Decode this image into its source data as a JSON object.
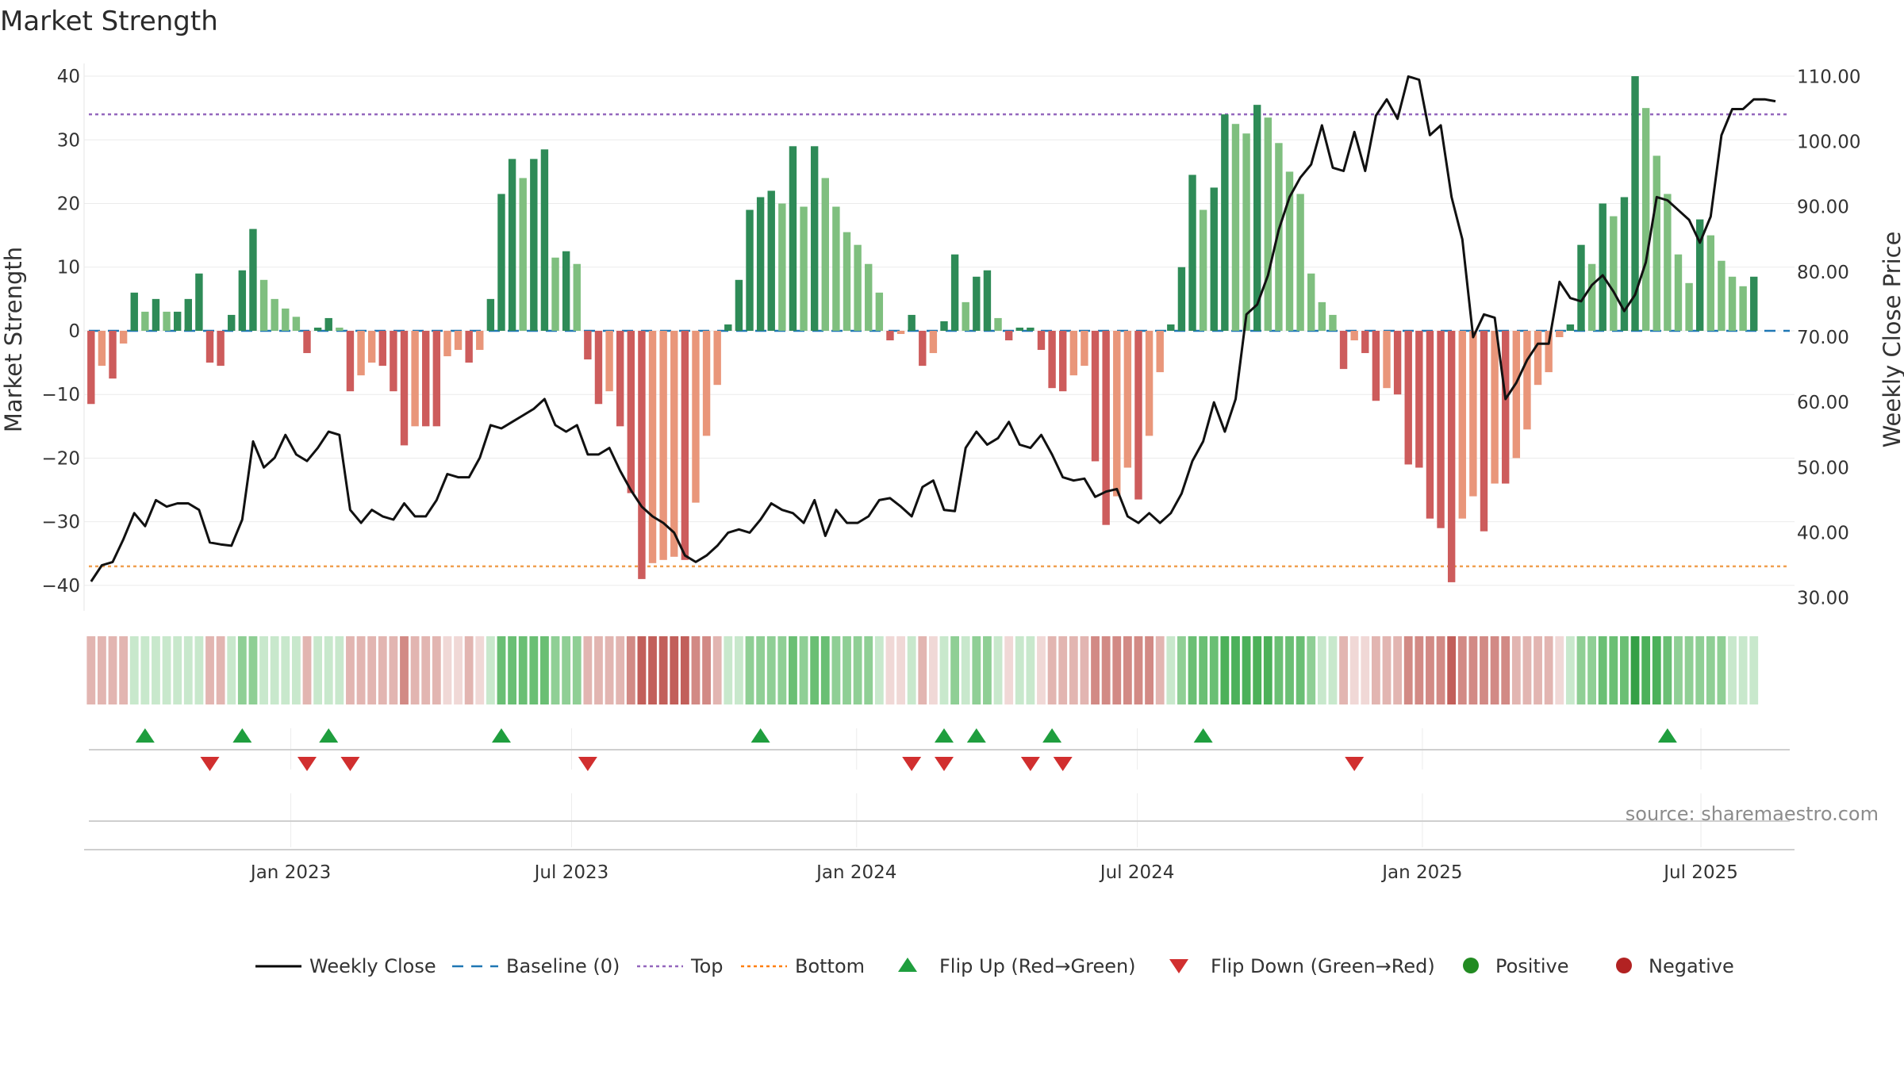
{
  "chart_data": {
    "type": "bar",
    "title": "Market Strength",
    "ylabel": "Market Strength",
    "y2label": "Weekly Close Price",
    "ylim": [
      -44,
      42
    ],
    "y2lim": [
      28,
      112
    ],
    "yticks": [
      "40",
      "30",
      "20",
      "10",
      "0",
      "−10",
      "−20",
      "−30",
      "−40"
    ],
    "y2ticks": [
      "110.00",
      "100.00",
      "90.00",
      "80.00",
      "70.00",
      "60.00",
      "50.00",
      "40.00",
      "30.00"
    ],
    "xticks": [
      {
        "label": "Jan 2023",
        "week": 19
      },
      {
        "label": "Jul 2023",
        "week": 45
      },
      {
        "label": "Jan 2024",
        "week": 71.4
      },
      {
        "label": "Jul 2024",
        "week": 97.4
      },
      {
        "label": "Jan 2025",
        "week": 123.8
      },
      {
        "label": "Jul 2025",
        "week": 149.6
      }
    ],
    "top_line": 34,
    "bottom_line": -37,
    "strength": [
      -11.5,
      -5.5,
      -7.5,
      -2,
      6,
      3,
      5,
      3,
      3,
      5,
      9,
      -5,
      -5.5,
      2.5,
      9.5,
      16,
      8,
      5,
      3.5,
      2.2,
      -3.5,
      0.5,
      2,
      0.5,
      -9.5,
      -7,
      -5,
      -5.5,
      -9.5,
      -18,
      -15,
      -15,
      -15,
      -4,
      -3,
      -5,
      -3,
      5,
      21.5,
      27,
      24,
      27,
      28.5,
      11.5,
      12.5,
      10.5,
      -4.5,
      -11.5,
      -9.5,
      -15,
      -25.5,
      -39,
      -36.5,
      -36,
      -35.5,
      -36,
      -27,
      -16.5,
      -8.5,
      1,
      8,
      19,
      21,
      22,
      20,
      29,
      19.5,
      29,
      24,
      19.5,
      15.5,
      13.5,
      10.5,
      6,
      -1.5,
      -0.5,
      2.5,
      -5.5,
      -3.5,
      1.5,
      12,
      4.5,
      8.5,
      9.5,
      2,
      -1.5,
      0.5,
      0.5,
      -3,
      -9,
      -9.5,
      -7,
      -5.5,
      -20.5,
      -30.5,
      -26,
      -21.5,
      -26.5,
      -16.5,
      -6.5,
      1,
      10,
      24.5,
      19,
      22.5,
      34,
      32.5,
      31,
      35.5,
      33.5,
      29.5,
      25,
      21.5,
      9,
      4.5,
      2.5,
      -6,
      -1.5,
      -3.5,
      -11,
      -9,
      -10,
      -21,
      -21.5,
      -29.5,
      -31,
      -39.5,
      -29.5,
      -26,
      -31.5,
      -24,
      -24,
      -20,
      -15.5,
      -8.5,
      -6.5,
      -1,
      1,
      13.5,
      10.5,
      20,
      18,
      21,
      40,
      35,
      27.5,
      21.5,
      12,
      7.5,
      17.5,
      15,
      11,
      8.5,
      7,
      8.5
    ],
    "price": [
      32.5,
      35,
      35.5,
      39,
      43,
      41,
      45,
      44,
      44.5,
      44.5,
      43.5,
      38.5,
      38.2,
      38,
      42,
      54,
      50,
      51.5,
      55,
      52,
      51,
      53,
      55.5,
      55,
      43.5,
      41.5,
      43.5,
      42.5,
      42,
      44.5,
      42.5,
      42.5,
      45,
      49,
      48.5,
      48.5,
      51.5,
      56.5,
      56,
      57,
      58,
      59,
      60.5,
      56.5,
      55.5,
      56.5,
      52,
      52,
      53,
      49.5,
      46.5,
      44,
      42.5,
      41.5,
      40,
      36.5,
      35.5,
      36.5,
      38,
      40,
      40.5,
      40,
      42,
      44.5,
      43.5,
      43,
      41.5,
      45,
      39.5,
      43.5,
      41.5,
      41.5,
      42.5,
      45,
      45.3,
      44,
      42.5,
      47,
      48,
      43.5,
      43.3,
      53,
      55.5,
      53.5,
      54.5,
      57,
      53.5,
      53,
      55,
      52,
      48.5,
      48,
      48.3,
      45.5,
      46.3,
      46.7,
      42.5,
      41.5,
      43,
      41.5,
      43,
      46,
      51,
      54,
      60,
      55.5,
      60.5,
      73.5,
      75,
      79.5,
      86.5,
      91.5,
      94.5,
      96.5,
      102.5,
      96,
      95.5,
      101.5,
      95.5,
      104,
      106.5,
      103.5,
      110,
      109.5,
      101,
      102.5,
      91.5,
      85,
      70,
      73.5,
      73,
      60.5,
      63,
      66.5,
      69,
      69,
      78.5,
      76,
      75.5,
      78,
      79.5,
      77,
      74,
      76.5,
      81.5,
      91.5,
      91,
      89.5,
      88,
      84.5,
      88.5,
      101,
      105,
      105,
      106.5,
      106.5,
      106.2
    ],
    "strip": [
      -2,
      -2,
      -2,
      -2,
      1,
      1,
      1,
      1,
      1,
      1,
      1,
      -2,
      -2,
      1,
      2,
      2,
      1,
      1,
      1,
      1,
      -2,
      1,
      1,
      1,
      -2,
      -2,
      -2,
      -2,
      -2,
      -3,
      -2,
      -2,
      -2,
      -1,
      -1,
      -2,
      -1,
      1,
      3,
      3,
      3,
      3,
      3,
      2,
      2,
      2,
      -2,
      -2,
      -2,
      -2,
      -3,
      -4,
      -4,
      -4,
      -4,
      -4,
      -3,
      -3,
      -2,
      1,
      1,
      2,
      2,
      2,
      2,
      3,
      2,
      3,
      3,
      2,
      2,
      2,
      2,
      1,
      -1,
      -1,
      1,
      -2,
      -1,
      1,
      2,
      1,
      2,
      2,
      1,
      -1,
      1,
      1,
      -1,
      -2,
      -2,
      -2,
      -2,
      -3,
      -3,
      -3,
      -3,
      -3,
      -3,
      -2,
      1,
      2,
      3,
      3,
      3,
      4,
      4,
      4,
      4,
      4,
      3,
      3,
      3,
      2,
      1,
      1,
      -2,
      -1,
      -1,
      -2,
      -2,
      -2,
      -3,
      -3,
      -3,
      -3,
      -4,
      -3,
      -3,
      -3,
      -3,
      -3,
      -2,
      -2,
      -2,
      -2,
      -1,
      1,
      2,
      2,
      3,
      3,
      3,
      5,
      4,
      4,
      3,
      2,
      2,
      2,
      2,
      2,
      1,
      1,
      1
    ],
    "flip_up": [
      5,
      14,
      22,
      38,
      62,
      79,
      82,
      89,
      103,
      146
    ],
    "flip_down": [
      11,
      20,
      24,
      46,
      76,
      79,
      87,
      90,
      117
    ],
    "legend": [
      {
        "name": "Weekly Close",
        "symbol": "solid-line",
        "color": "#000000"
      },
      {
        "name": "Baseline (0)",
        "symbol": "dashed-line",
        "color": "#1f77b4"
      },
      {
        "name": "Top",
        "symbol": "dotted-line",
        "color": "#9467bd"
      },
      {
        "name": "Bottom",
        "symbol": "dotted-line",
        "color": "#ff7f0e"
      },
      {
        "name": "Flip Up (Red→Green)",
        "symbol": "triangle-up",
        "color": "#2ca02c"
      },
      {
        "name": "Flip Down (Green→Red)",
        "symbol": "triangle-down",
        "color": "#d62728"
      },
      {
        "name": "Positive",
        "symbol": "circle",
        "color": "#228b22"
      },
      {
        "name": "Negative",
        "symbol": "circle",
        "color": "#b22222"
      }
    ],
    "legend_position": "bottom",
    "grid": true,
    "source": "source: sharemaestro.com"
  }
}
